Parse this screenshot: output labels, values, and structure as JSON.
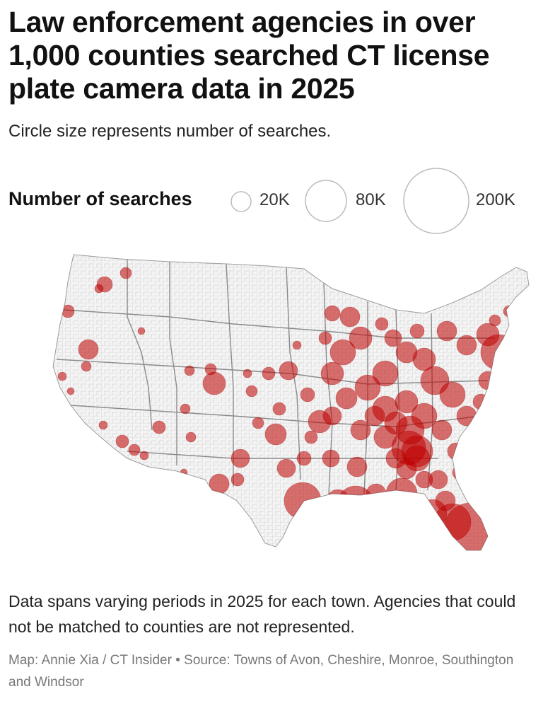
{
  "header": {
    "title": "Law enforcement agencies in over 1,000 counties searched CT license plate camera data in 2025",
    "subtitle": "Circle size represents number of searches."
  },
  "legend": {
    "title": "Number of searches",
    "items": [
      {
        "label": "20K",
        "value": 20000
      },
      {
        "label": "80K",
        "value": 80000
      },
      {
        "label": "200K",
        "value": 200000
      }
    ]
  },
  "map": {
    "region": "United States (counties)",
    "circle_color": "#c00000",
    "base_color": "#f4f4f4",
    "border_color": "#bdbdbd",
    "state_border_color": "#808080"
  },
  "footer": {
    "note": "Data spans varying periods in 2025 for each town. Agencies that could not be matched to counties are not represented.",
    "credit": "Map: Annie Xia / CT Insider • Source: Towns of Avon, Cheshire, Monroe, Southington and Windsor"
  }
}
